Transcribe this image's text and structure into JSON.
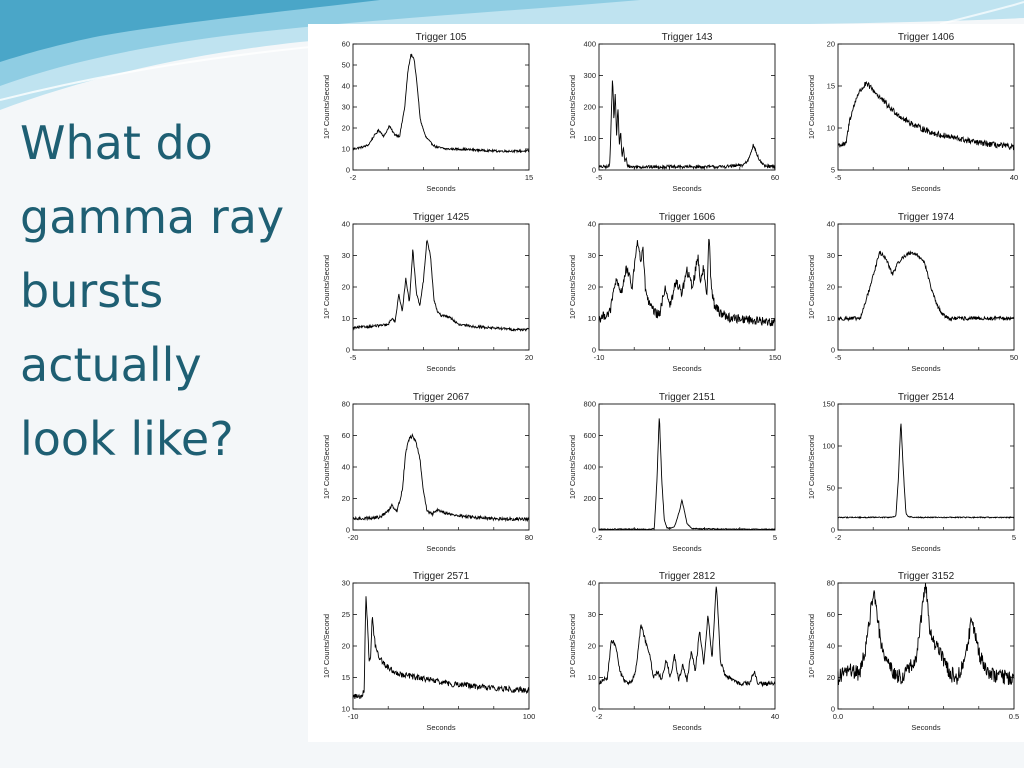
{
  "slide": {
    "title_lines": [
      "What do",
      "gamma ray",
      "bursts",
      "actually",
      "look like?"
    ],
    "theme_colors": {
      "title": "#1e5f73",
      "wave_light": "#bfe3f0",
      "wave_mid": "#8fcde3",
      "wave_dark": "#4aa6c8",
      "background": "#f4f7f9"
    }
  },
  "chart_data": [
    {
      "type": "line",
      "title": "Trigger 105",
      "xlabel": "Seconds",
      "ylabel": "10³ Counts/Second",
      "xlim": [
        -2,
        15
      ],
      "ylim": [
        0,
        60
      ],
      "xticks": [
        "-2",
        "15"
      ],
      "yticks": [
        0,
        10,
        20,
        30,
        40,
        50,
        60
      ],
      "noise": 0.5,
      "baseline": 10,
      "x": [
        -2,
        -1,
        -0.5,
        0,
        0.5,
        1,
        1.5,
        2,
        2.5,
        3,
        3.3,
        3.6,
        3.9,
        4.2,
        4.5,
        5,
        5.5,
        6,
        7,
        8,
        10,
        12,
        14,
        15
      ],
      "y": [
        10,
        11,
        12,
        16,
        19,
        16,
        21,
        17,
        16,
        30,
        47,
        55,
        53,
        40,
        24,
        16,
        13,
        11,
        10,
        10,
        9.5,
        9,
        9,
        9
      ]
    },
    {
      "type": "line",
      "title": "Trigger 143",
      "xlabel": "Seconds",
      "ylabel": "10³ Counts/Second",
      "xlim": [
        -5,
        60
      ],
      "ylim": [
        0,
        400
      ],
      "xticks": [
        "-5",
        "60"
      ],
      "yticks": [
        0,
        100,
        200,
        300,
        400
      ],
      "noise": 5,
      "baseline": 10,
      "x": [
        -5,
        -1.5,
        -1,
        0,
        0.5,
        1,
        1.5,
        2,
        2.5,
        3,
        3.5,
        4,
        4.5,
        5,
        5.5,
        6,
        7,
        8,
        10,
        20,
        40,
        48,
        50,
        52,
        54,
        56,
        60
      ],
      "y": [
        10,
        10,
        20,
        300,
        160,
        240,
        110,
        200,
        80,
        120,
        40,
        75,
        25,
        38,
        15,
        12,
        10,
        10,
        10,
        10,
        10,
        15,
        30,
        80,
        35,
        12,
        10
      ]
    },
    {
      "type": "line",
      "title": "Trigger 1406",
      "xlabel": "Seconds",
      "ylabel": "10³ Counts/Second",
      "xlim": [
        -5,
        40
      ],
      "ylim": [
        5,
        20
      ],
      "xticks": [
        "-5",
        "40"
      ],
      "yticks": [
        5,
        10,
        15,
        20
      ],
      "noise": 0.35,
      "baseline": 8,
      "x": [
        -5,
        -3,
        -2,
        0,
        2,
        3,
        4,
        6,
        8,
        12,
        16,
        20,
        25,
        30,
        35,
        40
      ],
      "y": [
        8,
        8,
        11,
        14,
        15.2,
        15,
        14.5,
        13.5,
        12.5,
        11,
        10,
        9.3,
        8.8,
        8.3,
        8,
        7.7
      ]
    },
    {
      "type": "line",
      "title": "Trigger 1425",
      "xlabel": "Seconds",
      "ylabel": "10³ Counts/Second",
      "xlim": [
        -5,
        20
      ],
      "ylim": [
        0,
        40
      ],
      "xticks": [
        "-5",
        "20"
      ],
      "yticks": [
        0,
        10,
        20,
        30,
        40
      ],
      "noise": 0.4,
      "baseline": 7,
      "x": [
        -5,
        0,
        0.5,
        1,
        1.5,
        2,
        2.5,
        3,
        3.5,
        4,
        4.5,
        5,
        5.5,
        6,
        6.5,
        7,
        7.5,
        8,
        9,
        10,
        12,
        15,
        18,
        20
      ],
      "y": [
        7,
        8,
        10,
        9,
        18,
        12,
        23,
        15,
        32,
        18,
        14,
        22,
        35,
        30,
        16,
        12,
        11,
        11,
        10,
        8,
        7.5,
        7,
        6.5,
        6.5
      ]
    },
    {
      "type": "line",
      "title": "Trigger 1606",
      "xlabel": "Seconds",
      "ylabel": "10³ Counts/Second",
      "xlim": [
        -10,
        150
      ],
      "ylim": [
        0,
        40
      ],
      "xticks": [
        "-10",
        "150"
      ],
      "yticks": [
        0,
        10,
        20,
        30,
        40
      ],
      "noise": 1.5,
      "baseline": 10,
      "x": [
        -10,
        0,
        5,
        10,
        15,
        20,
        25,
        28,
        30,
        32,
        35,
        40,
        45,
        50,
        55,
        60,
        65,
        70,
        75,
        80,
        82,
        85,
        88,
        90,
        92,
        95,
        100,
        110,
        120,
        130,
        140,
        150
      ],
      "y": [
        10,
        12,
        22,
        18,
        26,
        20,
        35,
        28,
        32,
        20,
        15,
        12,
        11,
        20,
        14,
        22,
        18,
        25,
        20,
        30,
        22,
        26,
        17,
        38,
        20,
        14,
        12,
        10,
        10,
        9.5,
        9,
        9
      ]
    },
    {
      "type": "line",
      "title": "Trigger 1974",
      "xlabel": "Seconds",
      "ylabel": "10³ Counts/Second",
      "xlim": [
        -5,
        50
      ],
      "ylim": [
        0,
        40
      ],
      "xticks": [
        "-5",
        "50"
      ],
      "yticks": [
        0,
        10,
        20,
        30,
        40
      ],
      "noise": 0.6,
      "baseline": 10,
      "x": [
        -5,
        2,
        5,
        8,
        10,
        12,
        14,
        16,
        18,
        20,
        22,
        24,
        26,
        28,
        30,
        35,
        40,
        45,
        50
      ],
      "y": [
        10,
        10,
        20,
        31,
        29,
        24,
        28,
        30,
        31,
        30,
        28,
        20,
        14,
        11,
        10,
        10,
        10,
        10,
        10
      ]
    },
    {
      "type": "line",
      "title": "Trigger 2067",
      "xlabel": "Seconds",
      "ylabel": "10³ Counts/Second",
      "xlim": [
        -20,
        80
      ],
      "ylim": [
        0,
        80
      ],
      "xticks": [
        "-20",
        "80"
      ],
      "yticks": [
        0,
        20,
        40,
        60,
        80
      ],
      "noise": 1.0,
      "baseline": 7,
      "x": [
        -20,
        -5,
        0,
        2,
        5,
        8,
        10,
        12,
        14,
        16,
        18,
        20,
        22,
        25,
        28,
        30,
        35,
        40,
        50,
        60,
        70,
        80
      ],
      "y": [
        7,
        8,
        12,
        16,
        12,
        25,
        50,
        58,
        60,
        55,
        45,
        25,
        12,
        10,
        13,
        12,
        10,
        9,
        8,
        7,
        7,
        7
      ]
    },
    {
      "type": "line",
      "title": "Trigger 2151",
      "xlabel": "Seconds",
      "ylabel": "10³ Counts/Second",
      "xlim": [
        -2,
        5
      ],
      "ylim": [
        0,
        800
      ],
      "xticks": [
        "-2",
        "5"
      ],
      "yticks": [
        0,
        200,
        400,
        600,
        800
      ],
      "noise": 3,
      "baseline": 5,
      "x": [
        -2,
        0,
        0.2,
        0.3,
        0.4,
        0.5,
        0.6,
        0.7,
        0.8,
        1.0,
        1.2,
        1.3,
        1.4,
        1.5,
        1.7,
        2.0,
        3.0,
        4.0,
        5.0
      ],
      "y": [
        5,
        5,
        8,
        300,
        730,
        300,
        60,
        15,
        10,
        20,
        120,
        190,
        120,
        40,
        10,
        8,
        6,
        5,
        5
      ]
    },
    {
      "type": "line",
      "title": "Trigger 2514",
      "xlabel": "Seconds",
      "ylabel": "10³ Counts/Second",
      "xlim": [
        -2,
        5
      ],
      "ylim": [
        0,
        150
      ],
      "xticks": [
        "-2",
        "5"
      ],
      "yticks": [
        0,
        50,
        100,
        150
      ],
      "noise": 0.6,
      "baseline": 15,
      "x": [
        -2,
        0,
        0.3,
        0.4,
        0.5,
        0.6,
        0.7,
        0.8,
        1.0,
        2.0,
        3.0,
        4.0,
        5.0
      ],
      "y": [
        15,
        15,
        16,
        60,
        130,
        70,
        20,
        16,
        15,
        15,
        15,
        15,
        15
      ]
    },
    {
      "type": "line",
      "title": "Trigger 2571",
      "xlabel": "Seconds",
      "ylabel": "10³ Counts/Second",
      "xlim": [
        -10,
        100
      ],
      "ylim": [
        10,
        30
      ],
      "xticks": [
        "-10",
        "100"
      ],
      "yticks": [
        10,
        15,
        20,
        25,
        30
      ],
      "noise": 0.45,
      "baseline": 13,
      "x": [
        -10,
        -5,
        -3,
        -2,
        -1,
        0,
        1,
        2,
        3,
        4,
        5,
        7,
        10,
        15,
        20,
        30,
        40,
        50,
        60,
        70,
        80,
        90,
        100
      ],
      "y": [
        12,
        12,
        13,
        28,
        24,
        18,
        18,
        25,
        22,
        20,
        19,
        18,
        17,
        16,
        15.5,
        15,
        14.5,
        14,
        13.8,
        13.5,
        13.3,
        13.1,
        13
      ]
    },
    {
      "type": "line",
      "title": "Trigger 2812",
      "xlabel": "Seconds",
      "ylabel": "10³ Counts/Second",
      "xlim": [
        -2,
        40
      ],
      "ylim": [
        0,
        40
      ],
      "xticks": [
        "-2",
        "40"
      ],
      "yticks": [
        0,
        10,
        20,
        30,
        40
      ],
      "noise": 0.7,
      "baseline": 8,
      "x": [
        -2,
        0,
        1,
        2,
        3,
        4,
        5,
        6,
        7,
        8,
        9,
        10,
        11,
        12,
        13,
        14,
        15,
        16,
        17,
        18,
        19,
        20,
        21,
        22,
        23,
        24,
        25,
        26,
        27,
        28,
        30,
        32,
        34,
        35,
        36,
        38,
        40
      ],
      "y": [
        8,
        10,
        22,
        20,
        12,
        9,
        8,
        9,
        14,
        27,
        22,
        18,
        10,
        12,
        9,
        16,
        10,
        17,
        9,
        14,
        9,
        18,
        12,
        25,
        14,
        30,
        16,
        40,
        15,
        11,
        9,
        8,
        8,
        12,
        8,
        8,
        8
      ]
    },
    {
      "type": "line",
      "title": "Trigger 3152",
      "xlabel": "Seconds",
      "ylabel": "10³ Counts/Second",
      "xlim": [
        0,
        0.5
      ],
      "ylim": [
        0,
        80
      ],
      "xticks": [
        "0.0",
        "0.5"
      ],
      "yticks": [
        0,
        20,
        40,
        60,
        80
      ],
      "noise": 5,
      "baseline": 20,
      "x": [
        0,
        0.03,
        0.06,
        0.08,
        0.1,
        0.12,
        0.14,
        0.16,
        0.18,
        0.2,
        0.22,
        0.24,
        0.25,
        0.26,
        0.28,
        0.3,
        0.32,
        0.34,
        0.36,
        0.38,
        0.4,
        0.43,
        0.46,
        0.5
      ],
      "y": [
        20,
        25,
        22,
        40,
        75,
        45,
        30,
        22,
        20,
        25,
        30,
        65,
        78,
        50,
        40,
        30,
        22,
        20,
        30,
        58,
        35,
        22,
        20,
        20
      ]
    }
  ]
}
